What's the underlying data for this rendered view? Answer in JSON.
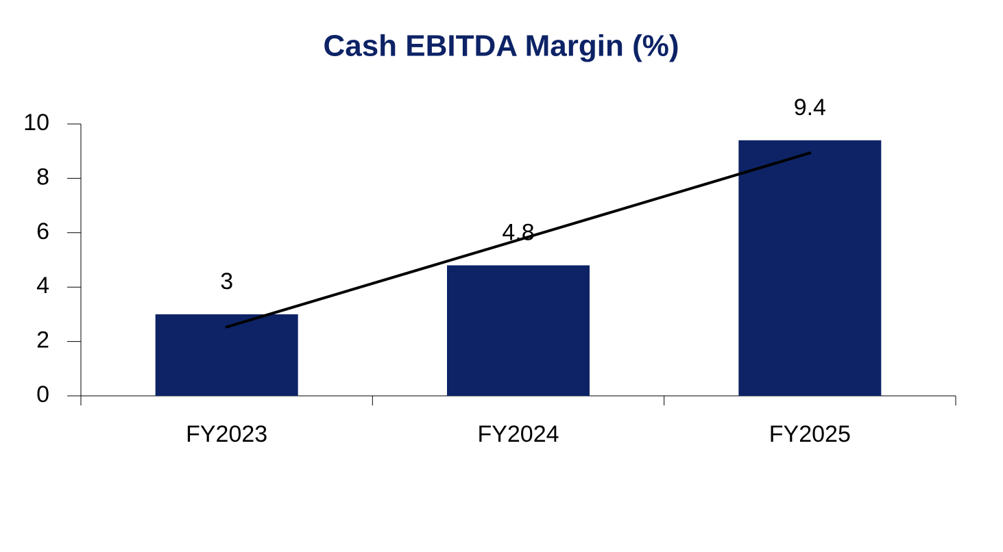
{
  "chart_data": {
    "type": "bar",
    "title": "Cash EBITDA Margin (%)",
    "categories": [
      "FY2023",
      "FY2024",
      "FY2025"
    ],
    "values": [
      3,
      4.8,
      9.4
    ],
    "color": "#0d2366",
    "ylim": [
      0,
      10
    ],
    "yticks": [
      0,
      2,
      4,
      6,
      8,
      10
    ],
    "data_labels": true,
    "trendline": true,
    "trendline_color": "#000000"
  }
}
